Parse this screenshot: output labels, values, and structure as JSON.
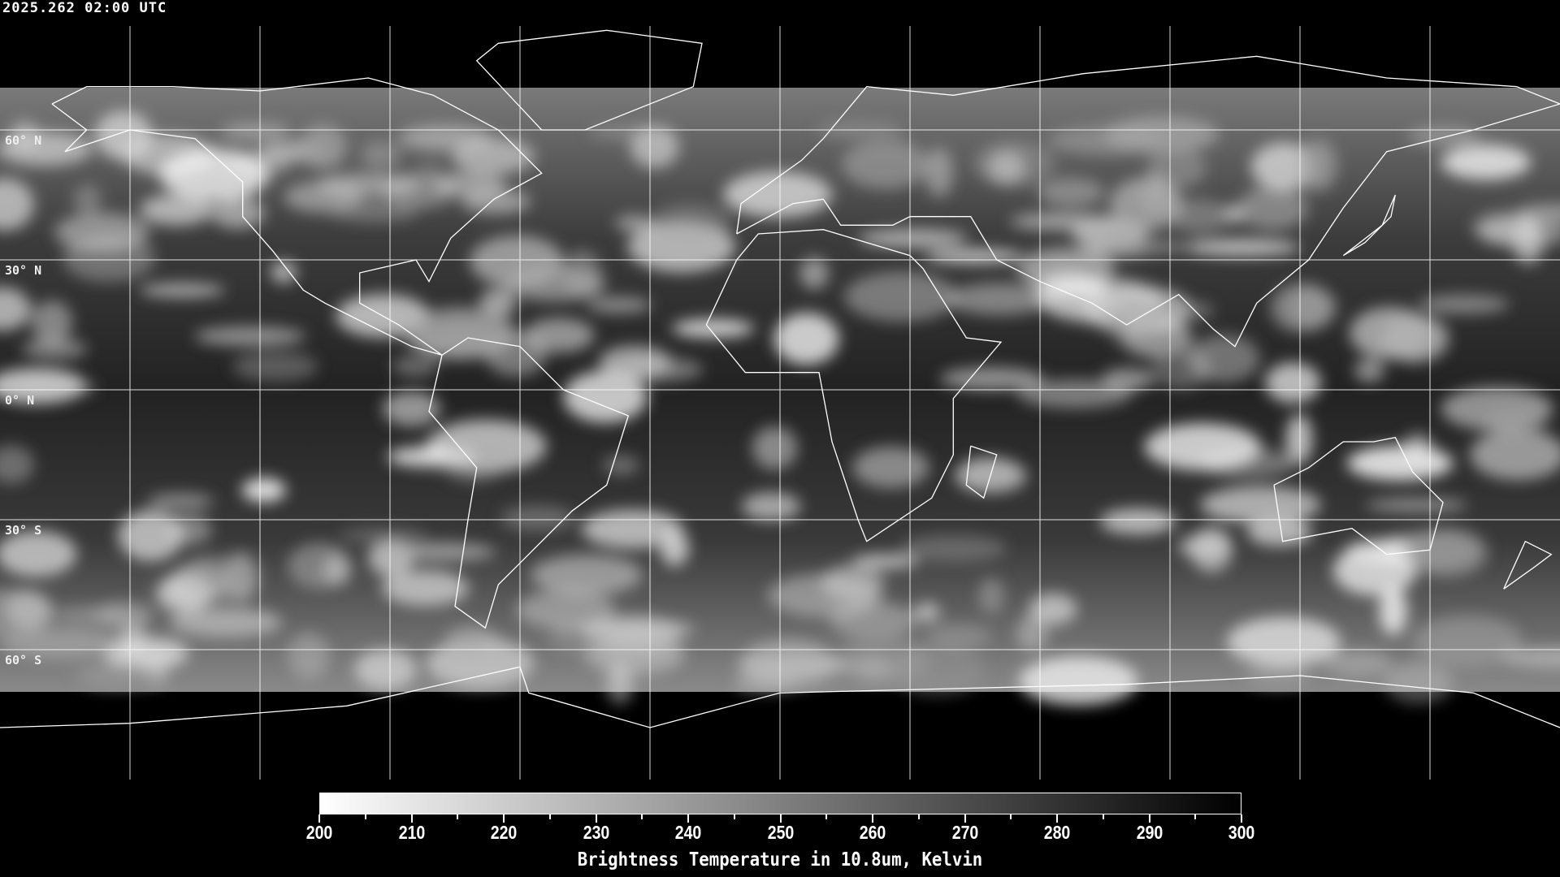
{
  "header": {
    "timestamp": "2025.262 02:00 UTC"
  },
  "map": {
    "projection": "equirectangular",
    "grid_spacing_deg": 30,
    "lat_labels": [
      "60° N",
      "30° N",
      "0° N",
      "30° S",
      "60° S"
    ],
    "coastline_color": "#ffffff",
    "grid_color": "#ffffff"
  },
  "colorbar": {
    "min": 200,
    "max": 300,
    "colormap": "white-to-black",
    "tick_labels": [
      "200",
      "210",
      "220",
      "230",
      "240",
      "250",
      "260",
      "270",
      "280",
      "290",
      "300"
    ],
    "title": "Brightness Temperature in 10.8um, Kelvin"
  }
}
